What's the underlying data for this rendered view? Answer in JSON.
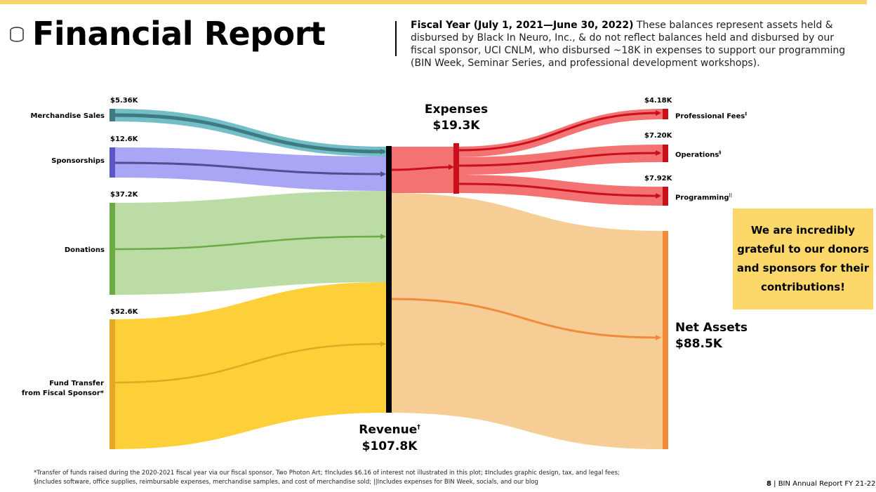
{
  "header": {
    "title": "Financial Report",
    "intro_bold": "Fiscal Year (July 1, 2021—June 30, 2022)",
    "intro_text": " These balances represent assets held & disbursed by Black In Neuro, Inc., & do not reflect balances held and disbursed by our fiscal sponsor, UCI CNLM, who disbursed ~18K in expenses to support our programming (BIN Week, Seminar Series, and professional development workshops).",
    "icon": "coins-icon"
  },
  "diagram": {
    "sources": [
      {
        "label": "Merchandise Sales",
        "value_label": "$5.36K",
        "value_k": 5.36,
        "color": "#6dbac4",
        "arrow_color": "#3d7a82"
      },
      {
        "label": "Sponsorships",
        "value_label": "$12.6K",
        "value_k": 12.6,
        "color": "#a9a6f5",
        "arrow_color": "#4e4f8f"
      },
      {
        "label": "Donations",
        "value_label": "$37.2K",
        "value_k": 37.2,
        "color": "#bcdca6",
        "arrow_color": "#6aab45"
      },
      {
        "label": "Fund Transfer",
        "label2": "from Fiscal Sponsor*",
        "value_label": "$52.6K",
        "value_k": 52.6,
        "color": "#fdd03a",
        "arrow_color": "#e2a723"
      }
    ],
    "revenue": {
      "label": "Revenue",
      "mark": "†",
      "value_label": "$107.8K",
      "value_k": 107.8
    },
    "expenses": {
      "label": "Expenses",
      "value_label": "$19.3K",
      "value_k": 19.3,
      "color": "#f47272",
      "arrow_color": "#c8101a"
    },
    "expense_targets": [
      {
        "label": "Professional Fees",
        "mark": "‡",
        "value_label": "$4.18K",
        "value_k": 4.18
      },
      {
        "label": "Operations",
        "mark": "§",
        "value_label": "$7.20K",
        "value_k": 7.2
      },
      {
        "label": "Programming",
        "mark": "||",
        "value_label": "$7.92K",
        "value_k": 7.92
      }
    ],
    "net_assets": {
      "label": "Net Assets",
      "value_label": "$88.5K",
      "value_k": 88.5,
      "color": "#f5cd95",
      "arrow_color": "#ef8b3a"
    }
  },
  "callout": {
    "text": "We are incredibly grateful to our donors and sponsors for their contributions!"
  },
  "footnotes": {
    "line1": "*Transfer of funds raised during the 2020-2021 fiscal year via our fiscal sponsor, Two Photon Art; †Includes $6.16 of interest not illustrated in this plot; ‡Includes graphic design, tax, and legal fees;",
    "line2": "§Includes software, office supplies, reimbursable expenses, merchandise samples, and cost of merchandise sold; ||Includes expenses for BIN Week, socials, and our blog"
  },
  "page": {
    "number": "8",
    "text": " | BIN Annual Report FY 21-22"
  }
}
